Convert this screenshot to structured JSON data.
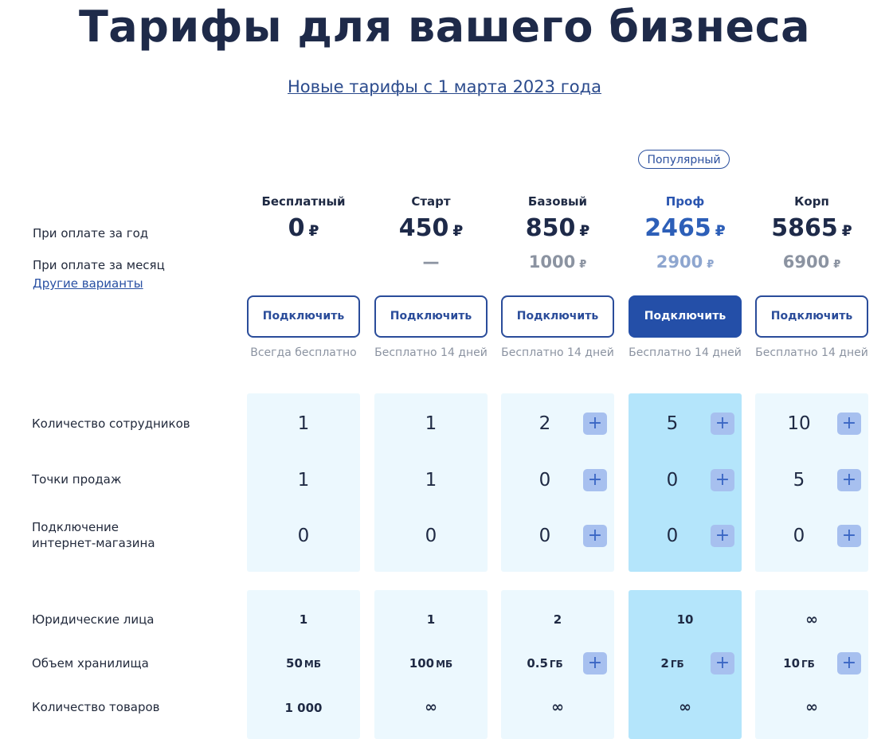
{
  "header": {
    "title": "Тарифы для вашего бизнеса",
    "subtitle_link": "Новые тарифы с 1 марта 2023 года"
  },
  "badge": "Популярный",
  "labels": {
    "year": "При оплате за год",
    "month": "При оплате за месяц",
    "other": "Другие варианты"
  },
  "currency": "₽",
  "plans": [
    {
      "name": "Бесплатный",
      "price_year": "0",
      "price_month": "",
      "button": "Подключить",
      "note": "Всегда бесплатно"
    },
    {
      "name": "Старт",
      "price_year": "450",
      "price_month": "—",
      "button": "Подключить",
      "note": "Бесплатно 14 дней"
    },
    {
      "name": "Базовый",
      "price_year": "850",
      "price_month": "1000",
      "button": "Подключить",
      "note": "Бесплатно 14 дней"
    },
    {
      "name": "Проф",
      "price_year": "2465",
      "price_month": "2900",
      "button": "Подключить",
      "note": "Бесплатно 14 дней"
    },
    {
      "name": "Корп",
      "price_year": "5865",
      "price_month": "6900",
      "button": "Подключить",
      "note": "Бесплатно 14 дней"
    }
  ],
  "features_group1": [
    {
      "label": "Количество сотрудников",
      "values": [
        "1",
        "1",
        "2",
        "5",
        "10"
      ],
      "plus": [
        false,
        false,
        true,
        true,
        true
      ]
    },
    {
      "label": "Точки продаж",
      "values": [
        "1",
        "1",
        "0",
        "0",
        "5"
      ],
      "plus": [
        false,
        false,
        true,
        true,
        true
      ]
    },
    {
      "label_line1": "Подключение",
      "label_line2": "интернет-магазина",
      "values": [
        "0",
        "0",
        "0",
        "0",
        "0"
      ],
      "plus": [
        false,
        false,
        true,
        true,
        true
      ]
    }
  ],
  "features_group2": [
    {
      "label": "Юридические лица",
      "values": [
        "1",
        "1",
        "2",
        "10",
        "∞"
      ],
      "units": [
        "",
        "",
        "",
        "",
        ""
      ],
      "plus": [
        false,
        false,
        false,
        false,
        false
      ]
    },
    {
      "label": "Объем хранилища",
      "values": [
        "50",
        "100",
        "0.5",
        "2",
        "10"
      ],
      "units": [
        "МБ",
        "МБ",
        "ГБ",
        "ГБ",
        "ГБ"
      ],
      "plus": [
        false,
        false,
        true,
        true,
        true
      ]
    },
    {
      "label": "Количество товаров",
      "values": [
        "1 000",
        "∞",
        "∞",
        "∞",
        "∞"
      ],
      "units": [
        "",
        "",
        "",
        "",
        ""
      ],
      "plus": [
        false,
        false,
        false,
        false,
        false
      ]
    }
  ],
  "plus_symbol": "+",
  "colors": {
    "accent": "#244fa8",
    "pro_column": "#b4e5fb",
    "column_bg": "#ecf8fe",
    "plus_bg": "#a7c0ef"
  }
}
